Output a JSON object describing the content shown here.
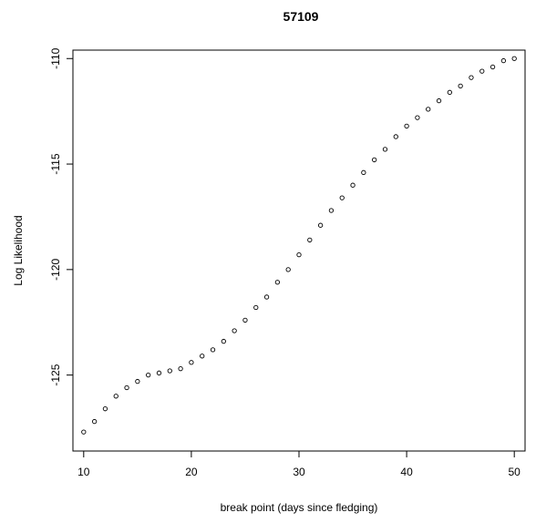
{
  "chart_data": {
    "type": "scatter",
    "title": "57109",
    "xlabel": "break point (days since fledging)",
    "ylabel": "Log Likelihood",
    "xlim": [
      9,
      51
    ],
    "ylim": [
      -128.6,
      -109.6
    ],
    "xticks": [
      10,
      20,
      30,
      40,
      50
    ],
    "yticks": [
      -110,
      -115,
      -120,
      -125
    ],
    "x": [
      10,
      11,
      12,
      13,
      14,
      15,
      16,
      17,
      18,
      19,
      20,
      21,
      22,
      23,
      24,
      25,
      26,
      27,
      28,
      29,
      30,
      31,
      32,
      33,
      34,
      35,
      36,
      37,
      38,
      39,
      40,
      41,
      42,
      43,
      44,
      45,
      46,
      47,
      48,
      49,
      50
    ],
    "y": [
      -127.7,
      -127.2,
      -126.6,
      -126.0,
      -125.6,
      -125.3,
      -125.0,
      -124.9,
      -124.8,
      -124.7,
      -124.4,
      -124.1,
      -123.8,
      -123.4,
      -122.9,
      -122.4,
      -121.8,
      -121.3,
      -120.6,
      -120.0,
      -119.3,
      -118.6,
      -117.9,
      -117.2,
      -116.6,
      -116.0,
      -115.4,
      -114.8,
      -114.3,
      -113.7,
      -113.2,
      -112.8,
      -112.4,
      -112.0,
      -111.6,
      -111.3,
      -110.9,
      -110.6,
      -110.4,
      -110.1,
      -110.0
    ],
    "grid": false,
    "marker": "open-circle"
  }
}
